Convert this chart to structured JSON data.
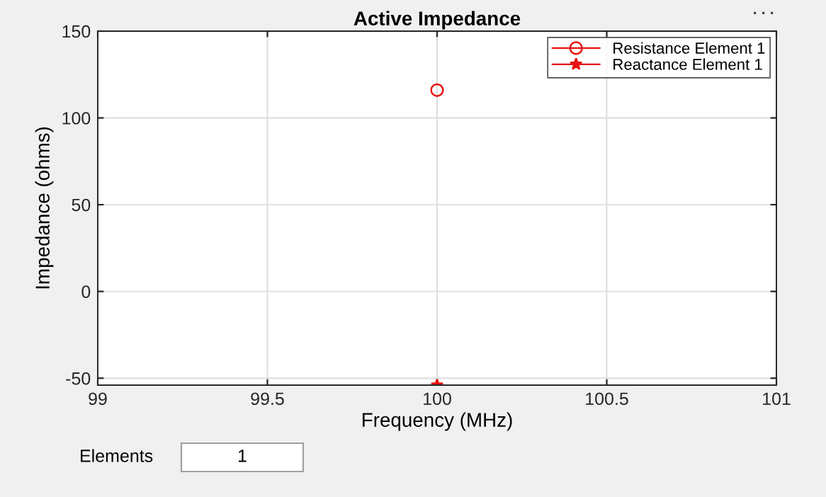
{
  "chart_data": {
    "type": "line",
    "title": "Active Impedance",
    "xlabel": "Frequency (MHz)",
    "ylabel": "Impedance (ohms)",
    "x": [
      100
    ],
    "series": [
      {
        "name": "Resistance Element 1",
        "color": "#e8130f",
        "values": [
          116
        ],
        "marker": "circle"
      },
      {
        "name": "Reactance Element 1",
        "color": "#e8130f",
        "values": [
          -54
        ],
        "marker": "star"
      }
    ],
    "xlim": [
      99,
      101
    ],
    "xticks": [
      99,
      99.5,
      100,
      100.5,
      101
    ],
    "ylim": [
      -54,
      150
    ],
    "yticks": [
      -50,
      0,
      50,
      100,
      150
    ],
    "grid": true,
    "legend": "top right",
    "line_style": "solid",
    "annotations": [
      "Elements",
      "1"
    ]
  }
}
